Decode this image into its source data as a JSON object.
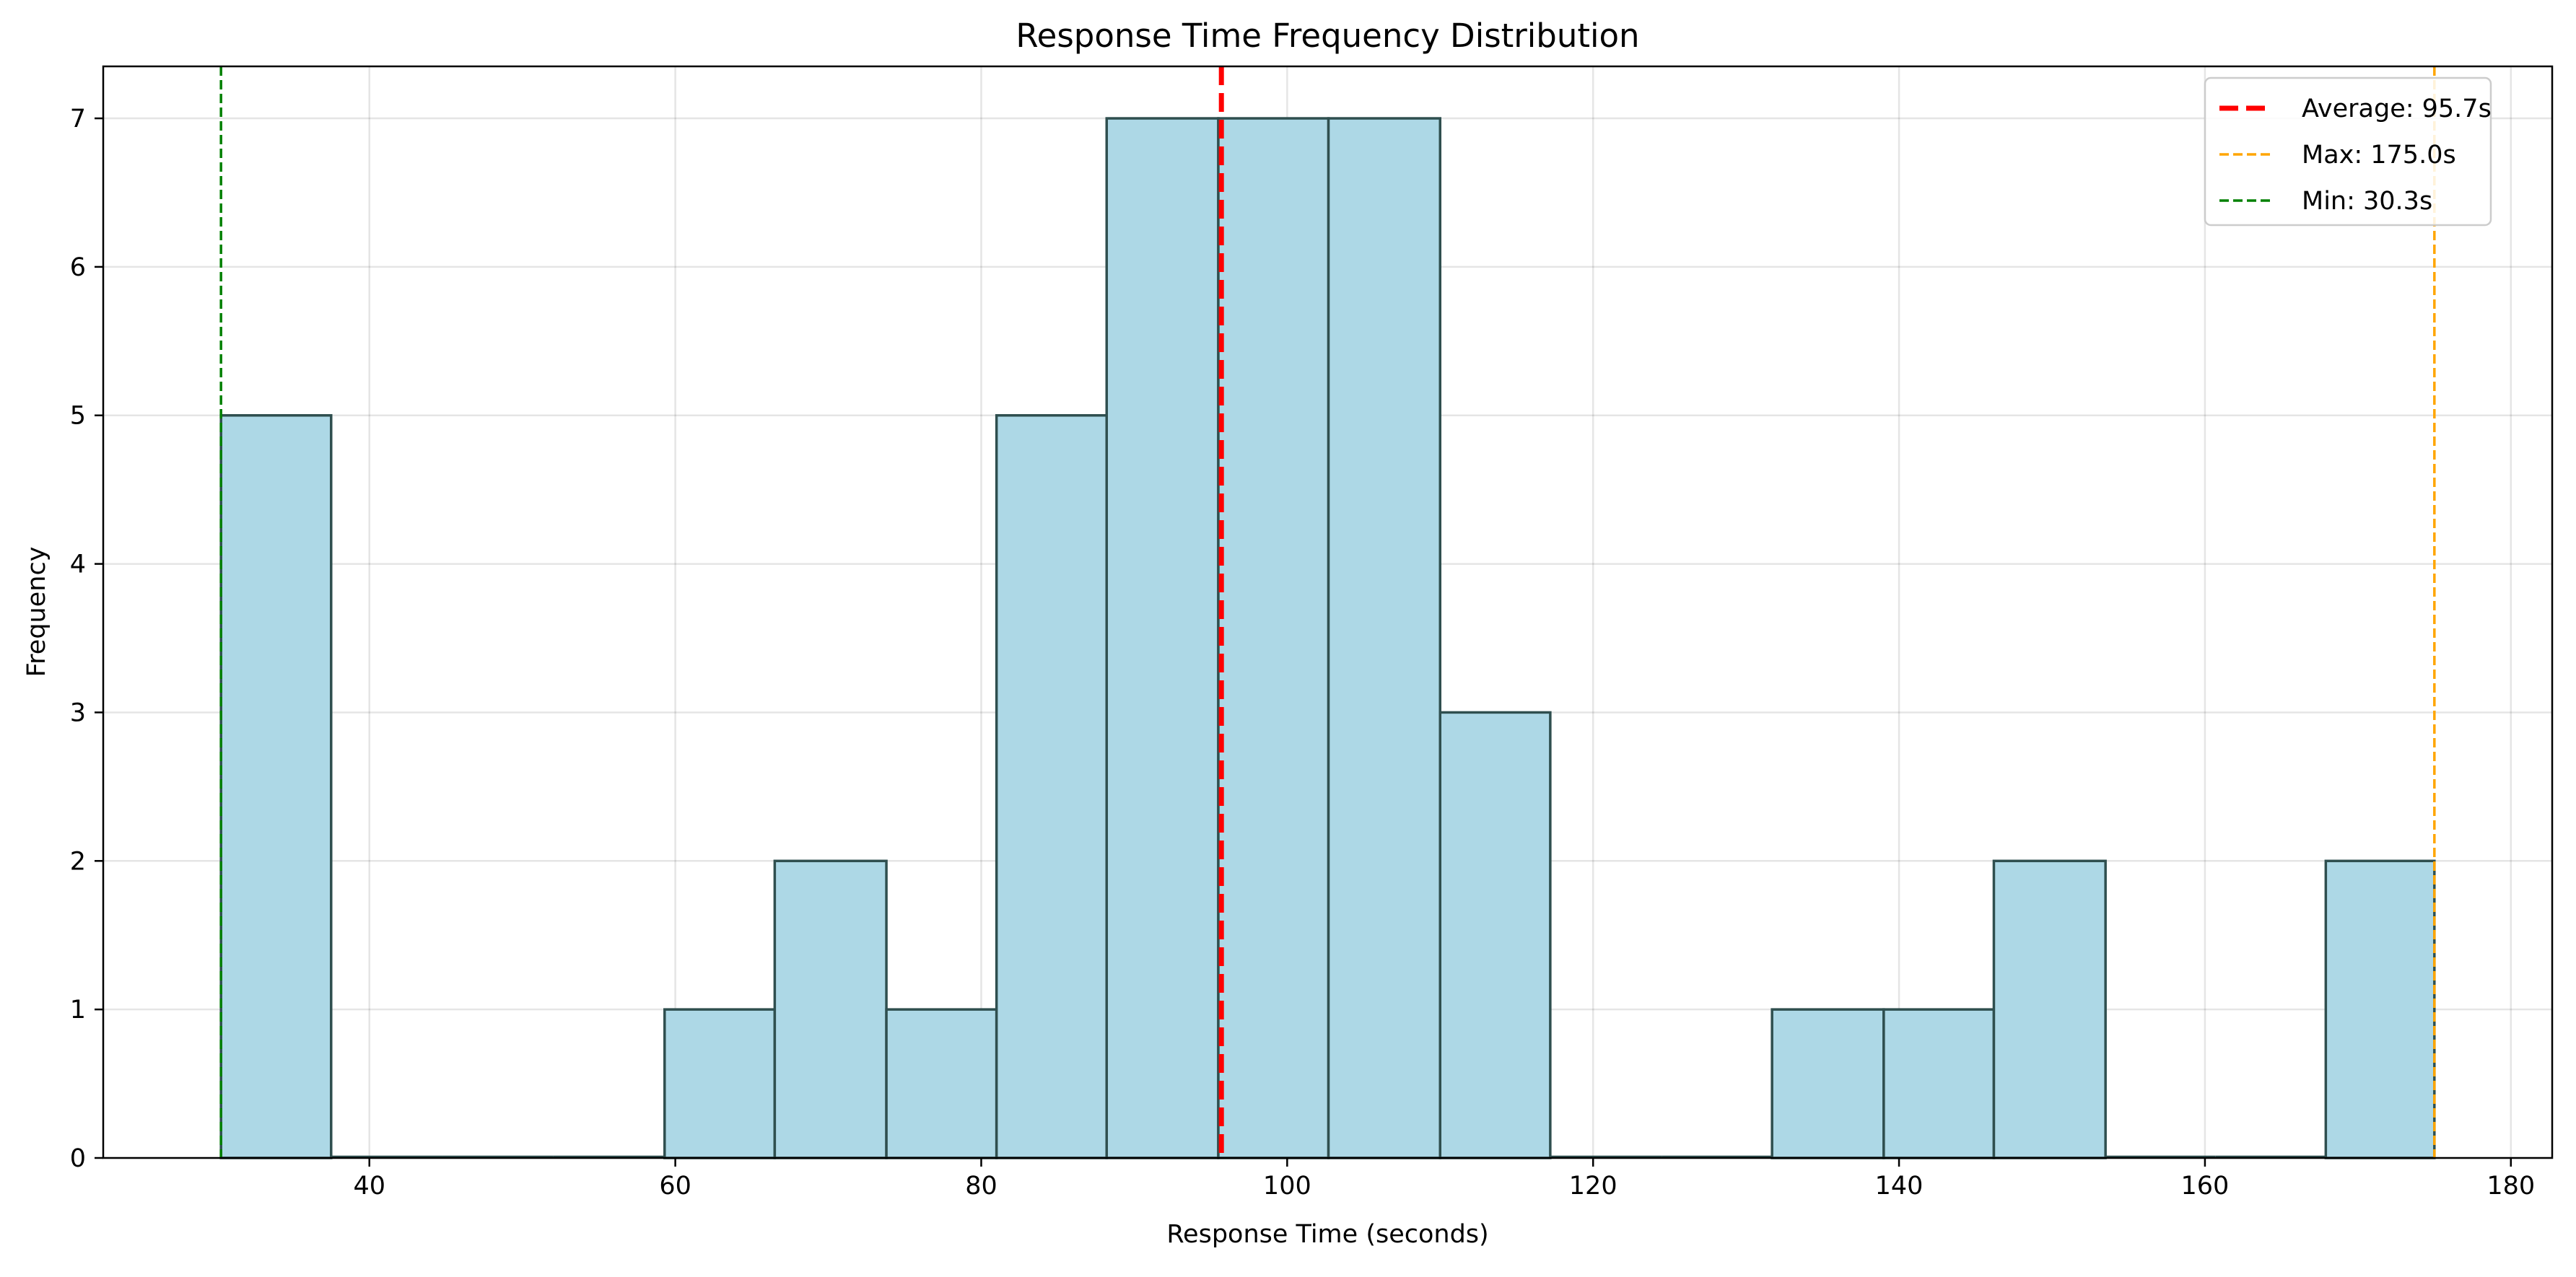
{
  "chart_data": {
    "type": "bar",
    "title": "Response Time Frequency Distribution",
    "xlabel": "Response Time (seconds)",
    "ylabel": "Frequency",
    "xlim": [
      22.6,
      182.7
    ],
    "ylim": [
      0,
      7.35
    ],
    "x_ticks": [
      40,
      60,
      80,
      100,
      120,
      140,
      160,
      180
    ],
    "y_ticks": [
      0,
      1,
      2,
      3,
      4,
      5,
      6,
      7
    ],
    "grid": true,
    "bins": [
      {
        "start": 30.3,
        "end": 37.5,
        "count": 5
      },
      {
        "start": 37.5,
        "end": 44.8,
        "count": 0
      },
      {
        "start": 44.8,
        "end": 52.0,
        "count": 0
      },
      {
        "start": 52.0,
        "end": 59.3,
        "count": 0
      },
      {
        "start": 59.3,
        "end": 66.5,
        "count": 1
      },
      {
        "start": 66.5,
        "end": 73.8,
        "count": 2
      },
      {
        "start": 73.8,
        "end": 81.0,
        "count": 1
      },
      {
        "start": 81.0,
        "end": 88.2,
        "count": 5
      },
      {
        "start": 88.2,
        "end": 95.5,
        "count": 7
      },
      {
        "start": 95.5,
        "end": 102.7,
        "count": 7
      },
      {
        "start": 102.7,
        "end": 110.0,
        "count": 7
      },
      {
        "start": 110.0,
        "end": 117.2,
        "count": 3
      },
      {
        "start": 117.2,
        "end": 124.5,
        "count": 0
      },
      {
        "start": 124.5,
        "end": 131.7,
        "count": 0
      },
      {
        "start": 131.7,
        "end": 139.0,
        "count": 1
      },
      {
        "start": 139.0,
        "end": 146.2,
        "count": 1
      },
      {
        "start": 146.2,
        "end": 153.5,
        "count": 2
      },
      {
        "start": 153.5,
        "end": 160.7,
        "count": 0
      },
      {
        "start": 160.7,
        "end": 167.9,
        "count": 0
      },
      {
        "start": 167.9,
        "end": 175.0,
        "count": 2
      }
    ],
    "bar_color": "#add8e6",
    "bar_edge_color": "#2f4f4f",
    "reference_lines": [
      {
        "label": "Average: 95.7s",
        "value": 95.7,
        "color": "#ff0000",
        "style": "bold-dashed"
      },
      {
        "label": "Max: 175.0s",
        "value": 175.0,
        "color": "#ffa500",
        "style": "thin-dashed"
      },
      {
        "label": "Min: 30.3s",
        "value": 30.3,
        "color": "#008000",
        "style": "thin-dashed"
      }
    ],
    "legend_position": "top-right"
  }
}
